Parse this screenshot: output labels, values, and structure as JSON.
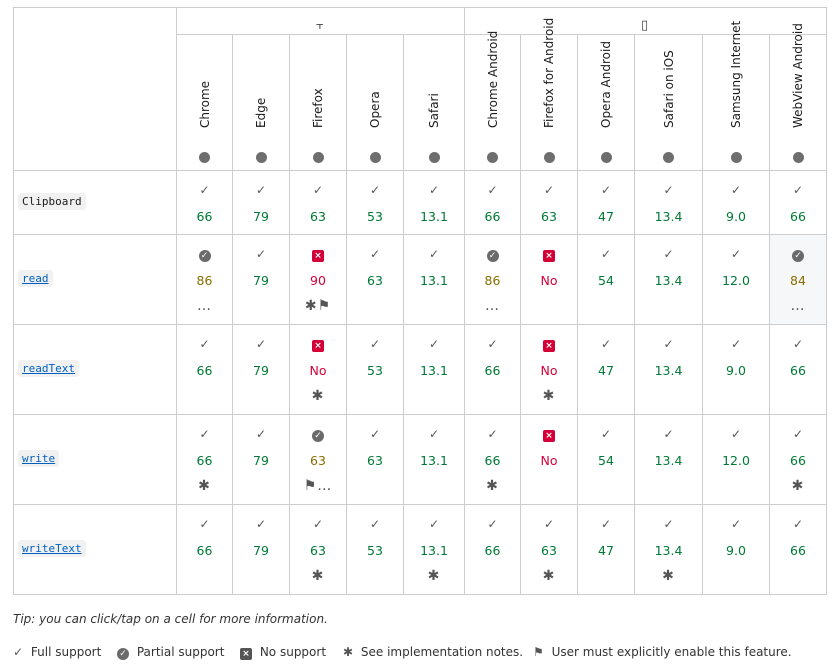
{
  "groups": {
    "desktop_icon": "desktop-icon",
    "mobile_icon": "mobile-icon"
  },
  "browsers": [
    "Chrome",
    "Edge",
    "Firefox",
    "Opera",
    "Safari",
    "Chrome Android",
    "Firefox for Android",
    "Opera Android",
    "Safari on iOS",
    "Samsung Internet",
    "WebView Android"
  ],
  "features": [
    "Clipboard",
    "read",
    "readText",
    "write",
    "writeText"
  ],
  "cells": [
    [
      [
        "full",
        "66",
        ""
      ],
      [
        "full",
        "79",
        ""
      ],
      [
        "full",
        "63",
        ""
      ],
      [
        "full",
        "53",
        ""
      ],
      [
        "full",
        "13.1",
        ""
      ],
      [
        "full",
        "66",
        ""
      ],
      [
        "full",
        "63",
        ""
      ],
      [
        "full",
        "47",
        ""
      ],
      [
        "full",
        "13.4",
        ""
      ],
      [
        "full",
        "9.0",
        ""
      ],
      [
        "full",
        "66",
        ""
      ]
    ],
    [
      [
        "partial",
        "86",
        "…"
      ],
      [
        "full",
        "79",
        ""
      ],
      [
        "no",
        "90",
        "✱⚑"
      ],
      [
        "full",
        "63",
        ""
      ],
      [
        "full",
        "13.1",
        ""
      ],
      [
        "partial",
        "86",
        "…"
      ],
      [
        "no",
        "No",
        ""
      ],
      [
        "full",
        "54",
        ""
      ],
      [
        "full",
        "13.4",
        ""
      ],
      [
        "full",
        "12.0",
        ""
      ],
      [
        "partial",
        "84",
        "…"
      ]
    ],
    [
      [
        "full",
        "66",
        ""
      ],
      [
        "full",
        "79",
        ""
      ],
      [
        "no",
        "No",
        "✱"
      ],
      [
        "full",
        "53",
        ""
      ],
      [
        "full",
        "13.1",
        ""
      ],
      [
        "full",
        "66",
        ""
      ],
      [
        "no",
        "No",
        "✱"
      ],
      [
        "full",
        "47",
        ""
      ],
      [
        "full",
        "13.4",
        ""
      ],
      [
        "full",
        "9.0",
        ""
      ],
      [
        "full",
        "66",
        ""
      ]
    ],
    [
      [
        "full",
        "66",
        "✱"
      ],
      [
        "full",
        "79",
        ""
      ],
      [
        "partial",
        "63",
        "⚑…"
      ],
      [
        "full",
        "63",
        ""
      ],
      [
        "full",
        "13.1",
        ""
      ],
      [
        "full",
        "66",
        "✱"
      ],
      [
        "no",
        "No",
        ""
      ],
      [
        "full",
        "54",
        ""
      ],
      [
        "full",
        "13.4",
        ""
      ],
      [
        "full",
        "12.0",
        ""
      ],
      [
        "full",
        "66",
        "✱"
      ]
    ],
    [
      [
        "full",
        "66",
        ""
      ],
      [
        "full",
        "79",
        ""
      ],
      [
        "full",
        "63",
        "✱"
      ],
      [
        "full",
        "53",
        ""
      ],
      [
        "full",
        "13.1",
        "✱"
      ],
      [
        "full",
        "66",
        ""
      ],
      [
        "full",
        "63",
        "✱"
      ],
      [
        "full",
        "47",
        ""
      ],
      [
        "full",
        "13.4",
        "✱"
      ],
      [
        "full",
        "9.0",
        ""
      ],
      [
        "full",
        "66",
        ""
      ]
    ]
  ],
  "tip": "Tip: you can click/tap on a cell for more information.",
  "legend": {
    "full": "Full support",
    "partial": "Partial support",
    "no": "No support",
    "notes": "See implementation notes.",
    "flag": "User must explicitly enable this feature."
  },
  "colors": {
    "full": "#007936",
    "partial": "#8a6d00",
    "no": "#d30038",
    "border": "#cdcdcd"
  }
}
